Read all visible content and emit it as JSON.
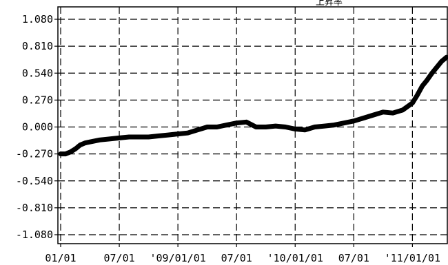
{
  "chart_data": {
    "type": "line",
    "title": "上昇率",
    "xlabel": "",
    "ylabel": "",
    "ylim": [
      -1.08,
      1.08
    ],
    "grid": true,
    "grid_style": "dashed",
    "line_color": "#000000",
    "y_ticks": [
      "1.080",
      "0.810",
      "0.540",
      "0.270",
      "0.000",
      "-0.270",
      "-0.540",
      "-0.810",
      "-1.080"
    ],
    "y_tick_values": [
      1.08,
      0.81,
      0.54,
      0.27,
      0.0,
      -0.27,
      -0.54,
      -0.81,
      -1.08
    ],
    "x_ticks": [
      "01/01",
      "07/01",
      "'09/01/01",
      "07/01",
      "'10/01/01",
      "07/01",
      "'11/01/01"
    ],
    "x_tick_values": [
      0,
      6,
      12,
      18,
      24,
      30,
      36
    ],
    "xlim": [
      0,
      39.5
    ],
    "series": [
      {
        "x": [
          0,
          0.5,
          1,
          1.5,
          2,
          2.5,
          3,
          4,
          5,
          6,
          7,
          8,
          9,
          10,
          11,
          12,
          13,
          14,
          15,
          16,
          17,
          18,
          19,
          20,
          21,
          22,
          23,
          24,
          25,
          26,
          27,
          28,
          29,
          30,
          31,
          32,
          33,
          34,
          35,
          36,
          36.5,
          37,
          37.5,
          38,
          38.5,
          39,
          39.5
        ],
        "y": [
          -0.27,
          -0.27,
          -0.25,
          -0.22,
          -0.18,
          -0.16,
          -0.15,
          -0.13,
          -0.12,
          -0.11,
          -0.1,
          -0.1,
          -0.1,
          -0.09,
          -0.08,
          -0.07,
          -0.06,
          -0.03,
          0.0,
          0.0,
          0.02,
          0.04,
          0.05,
          0.0,
          0.0,
          0.01,
          0.0,
          -0.02,
          -0.03,
          0.0,
          0.01,
          0.02,
          0.04,
          0.06,
          0.09,
          0.12,
          0.15,
          0.14,
          0.17,
          0.24,
          0.32,
          0.41,
          0.47,
          0.54,
          0.6,
          0.66,
          0.7
        ]
      }
    ]
  }
}
